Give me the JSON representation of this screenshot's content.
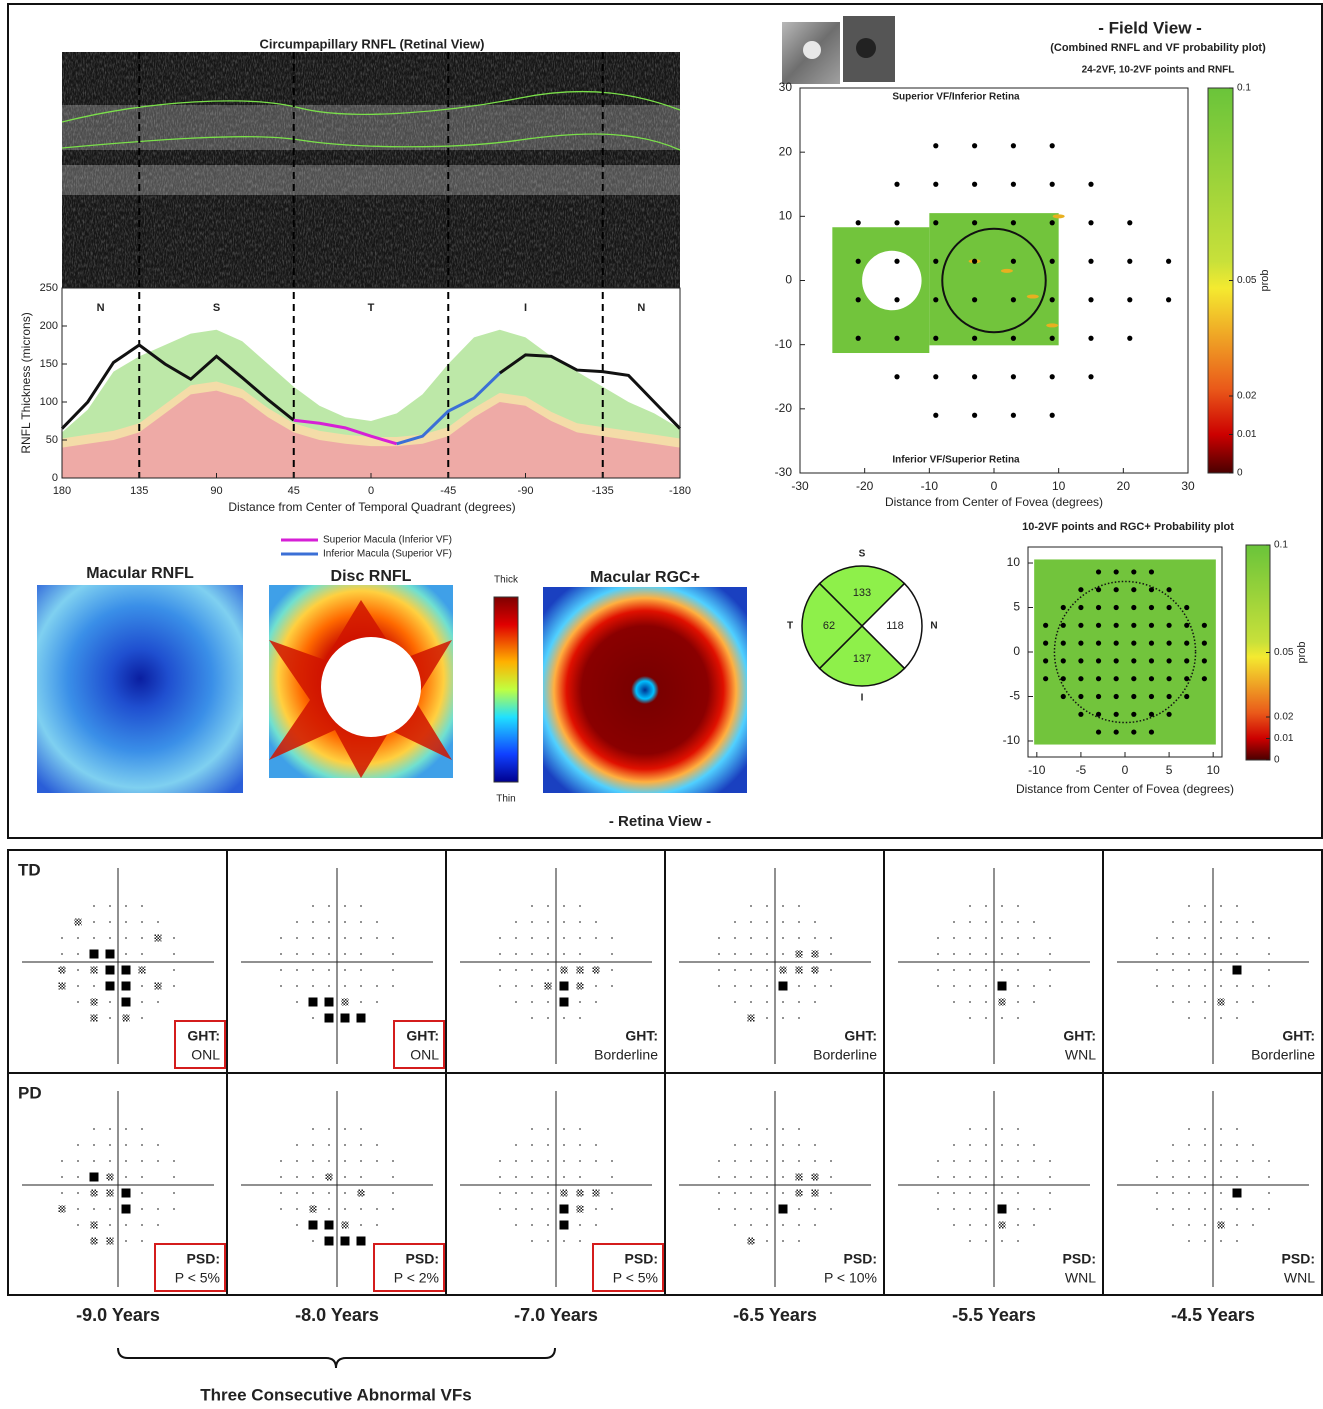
{
  "chart_data": [
    {
      "type": "line",
      "title": "Circumpapillary RNFL (Retinal View)",
      "x_label": "Distance from Center of Temporal Quadrant (degrees)",
      "y_label": "RNFL Thickness (microns)",
      "sector_labels": [
        "N",
        "S",
        "T",
        "I",
        "N"
      ],
      "boundaries": [
        135,
        45,
        -45,
        -135
      ],
      "x": [
        180,
        165,
        150,
        135,
        120,
        105,
        90,
        75,
        60,
        45,
        30,
        15,
        0,
        -15,
        -30,
        -45,
        -60,
        -75,
        -90,
        -105,
        -120,
        -135,
        -150,
        -165,
        -180
      ],
      "series": [
        {
          "color": "#111111",
          "values": [
            65,
            100,
            152,
            175,
            150,
            130,
            160,
            132,
            103,
            76,
            null,
            null,
            null,
            null,
            null,
            null,
            null,
            138,
            162,
            160,
            142,
            140,
            135,
            100,
            65
          ]
        },
        {
          "name": "Superior Macula (Inferior VF)",
          "color": "#d61fd6",
          "values": [
            null,
            null,
            null,
            null,
            null,
            null,
            null,
            null,
            null,
            76,
            72,
            66,
            55,
            45,
            null,
            null,
            null,
            null,
            null,
            null,
            null,
            null,
            null,
            null,
            null
          ]
        },
        {
          "name": "Inferior Macula (Superior VF)",
          "color": "#3b6fd6",
          "values": [
            null,
            null,
            null,
            null,
            null,
            null,
            null,
            null,
            null,
            null,
            null,
            null,
            null,
            45,
            55,
            88,
            105,
            138,
            null,
            null,
            null,
            null,
            null,
            null,
            null
          ]
        }
      ],
      "bands": [
        {
          "color": "#bde8a8",
          "values": [
            60,
            90,
            140,
            160,
            175,
            190,
            195,
            180,
            150,
            120,
            95,
            80,
            75,
            85,
            110,
            150,
            185,
            195,
            185,
            160,
            140,
            120,
            100,
            85,
            65
          ]
        },
        {
          "color": "#f4dca8",
          "values": [
            52,
            57,
            62,
            72,
            97,
            122,
            127,
            117,
            92,
            72,
            62,
            57,
            54,
            54,
            57,
            67,
            92,
            112,
            107,
            87,
            72,
            67,
            62,
            57,
            52
          ]
        },
        {
          "color": "#eeaaa6",
          "values": [
            40,
            45,
            50,
            60,
            85,
            110,
            115,
            105,
            80,
            60,
            50,
            45,
            42,
            42,
            45,
            55,
            80,
            100,
            95,
            75,
            60,
            55,
            50,
            45,
            40
          ]
        }
      ],
      "xlim": [
        180,
        -180
      ],
      "ylim": [
        0,
        250
      ],
      "xticks": [
        180,
        135,
        90,
        45,
        0,
        -45,
        -90,
        -135,
        -180
      ],
      "yticks": [
        0,
        50,
        100,
        150,
        200,
        250
      ]
    },
    {
      "type": "scatter",
      "title": "- Field View -",
      "subtitle": "(Combined RNFL and VF probability plot)",
      "subtitle2": "24-2VF, 10-2VF points and RNFL",
      "annotations": [
        "Superior VF/Inferior Retina",
        "Inferior VF/Superior Retina"
      ],
      "x_label": "Distance from Center of Fovea (degrees)",
      "color": "#000000",
      "x": [
        -9,
        -3,
        3,
        9,
        -15,
        -9,
        -3,
        3,
        9,
        15,
        -21,
        -15,
        -9,
        -3,
        3,
        9,
        15,
        21,
        -21,
        -15,
        -9,
        -3,
        3,
        9,
        15,
        21,
        27,
        -21,
        -15,
        -9,
        -3,
        3,
        9,
        15,
        21,
        27,
        -21,
        -15,
        -9,
        -3,
        3,
        9,
        15,
        21,
        -15,
        -9,
        -3,
        3,
        9,
        15,
        -9,
        -3,
        3,
        9
      ],
      "y": [
        21,
        21,
        21,
        21,
        15,
        15,
        15,
        15,
        15,
        15,
        9,
        9,
        9,
        9,
        9,
        9,
        9,
        9,
        3,
        3,
        3,
        3,
        3,
        3,
        3,
        3,
        3,
        -3,
        -3,
        -3,
        -3,
        -3,
        -3,
        -3,
        -3,
        -3,
        -9,
        -9,
        -9,
        -9,
        -9,
        -9,
        -9,
        -9,
        -15,
        -15,
        -15,
        -15,
        -15,
        -15,
        -21,
        -21,
        -21,
        -21
      ],
      "xlim": [
        -30,
        30
      ],
      "ylim": [
        -30,
        30
      ],
      "xticks": [
        -30,
        -20,
        -10,
        0,
        10,
        20,
        30
      ],
      "yticks": [
        -30,
        -20,
        -10,
        0,
        10,
        20,
        30
      ],
      "colorbar": {
        "lim": [
          0,
          0.1
        ],
        "ticks": [
          0,
          0.01,
          0.02,
          0.05,
          0.1
        ],
        "label": "prob"
      }
    },
    {
      "type": "scatter",
      "title": "10-2VF points and RGC+ Probability plot",
      "x_label": "Distance from Center of Fovea (degrees)",
      "color": "#000000",
      "x": [
        -3,
        -1,
        1,
        3,
        -5,
        -3,
        -1,
        1,
        3,
        5,
        -7,
        -5,
        -3,
        -1,
        1,
        3,
        5,
        7,
        -9,
        -7,
        -5,
        -3,
        -1,
        1,
        3,
        5,
        7,
        9,
        -9,
        -7,
        -5,
        -3,
        -1,
        1,
        3,
        5,
        7,
        9,
        -9,
        -7,
        -5,
        -3,
        -1,
        1,
        3,
        5,
        7,
        9,
        -9,
        -7,
        -5,
        -3,
        -1,
        1,
        3,
        5,
        7,
        9,
        -7,
        -5,
        -3,
        -1,
        1,
        3,
        5,
        7,
        -5,
        -3,
        -1,
        1,
        3,
        5,
        -3,
        -1,
        1,
        3
      ],
      "y": [
        9,
        9,
        9,
        9,
        7,
        7,
        7,
        7,
        7,
        7,
        5,
        5,
        5,
        5,
        5,
        5,
        5,
        5,
        3,
        3,
        3,
        3,
        3,
        3,
        3,
        3,
        3,
        3,
        1,
        1,
        1,
        1,
        1,
        1,
        1,
        1,
        1,
        1,
        -1,
        -1,
        -1,
        -1,
        -1,
        -1,
        -1,
        -1,
        -1,
        -1,
        -3,
        -3,
        -3,
        -3,
        -3,
        -3,
        -3,
        -3,
        -3,
        -3,
        -5,
        -5,
        -5,
        -5,
        -5,
        -5,
        -5,
        -5,
        -7,
        -7,
        -7,
        -7,
        -7,
        -7,
        -9,
        -9,
        -9,
        -9
      ],
      "xlim": [
        -11,
        11
      ],
      "ylim": [
        -11.8,
        11.8
      ],
      "xticks": [
        -10,
        -5,
        0,
        5,
        10
      ],
      "yticks": [
        -10,
        -5,
        0,
        5,
        10
      ],
      "colorbar": {
        "lim": [
          0,
          0.1
        ],
        "ticks": [
          0,
          0.01,
          0.02,
          0.05,
          0.1
        ],
        "label": "prob"
      }
    }
  ],
  "retina_view": {
    "caption": "- Retina View -",
    "maps": [
      "Macular RNFL",
      "Disc RNFL",
      "Macular RGC+"
    ],
    "scale": {
      "top": "Thick",
      "bottom": "Thin"
    },
    "quadrants": [
      {
        "label": "S",
        "value": 133,
        "color": "#8ef04a"
      },
      {
        "label": "N",
        "value": 118,
        "color": "#ffffff"
      },
      {
        "label": "I",
        "value": 137,
        "color": "#8ef04a"
      },
      {
        "label": "T",
        "value": 62,
        "color": "#8ef04a"
      }
    ]
  },
  "visual_fields": {
    "rows": [
      {
        "label": "TD",
        "metric": "GHT:"
      },
      {
        "label": "PD",
        "metric": "PSD:"
      }
    ],
    "columns": [
      {
        "year": "-9.0 Years",
        "td": {
          "result": "ONL",
          "flagged": true,
          "squares": [
            [
              -9,
              3
            ],
            [
              -3,
              3
            ],
            [
              -3,
              -3
            ],
            [
              3,
              -3
            ],
            [
              -3,
              -9
            ],
            [
              3,
              -9
            ],
            [
              3,
              -15
            ]
          ],
          "hatched": [
            [
              -21,
              -3
            ],
            [
              -9,
              -3
            ],
            [
              9,
              -3
            ],
            [
              -21,
              -9
            ],
            [
              15,
              -9
            ],
            [
              -9,
              -15
            ],
            [
              -9,
              -21
            ],
            [
              3,
              -21
            ],
            [
              -15,
              15
            ],
            [
              15,
              9
            ]
          ]
        },
        "pd": {
          "result": "P < 5%",
          "flagged": true,
          "squares": [
            [
              -9,
              3
            ],
            [
              3,
              -3
            ],
            [
              3,
              -9
            ]
          ],
          "hatched": [
            [
              -3,
              3
            ],
            [
              -9,
              -3
            ],
            [
              -3,
              -3
            ],
            [
              -9,
              -15
            ],
            [
              -9,
              -21
            ],
            [
              -3,
              -21
            ],
            [
              -21,
              -9
            ]
          ]
        }
      },
      {
        "year": "-8.0 Years",
        "td": {
          "result": "ONL",
          "flagged": true,
          "squares": [
            [
              -9,
              -15
            ],
            [
              -3,
              -15
            ],
            [
              -3,
              -21
            ],
            [
              3,
              -21
            ],
            [
              9,
              -21
            ]
          ],
          "hatched": [
            [
              3,
              -15
            ]
          ]
        },
        "pd": {
          "result": "P < 2%",
          "flagged": true,
          "squares": [
            [
              -9,
              -15
            ],
            [
              -3,
              -15
            ],
            [
              -3,
              -21
            ],
            [
              3,
              -21
            ],
            [
              9,
              -21
            ]
          ],
          "hatched": [
            [
              3,
              -15
            ],
            [
              -3,
              3
            ],
            [
              9,
              -3
            ],
            [
              -9,
              -9
            ]
          ]
        }
      },
      {
        "year": "-7.0 Years",
        "td": {
          "result": "Borderline",
          "flagged": false,
          "squares": [
            [
              3,
              -9
            ],
            [
              3,
              -15
            ]
          ],
          "hatched": [
            [
              9,
              -3
            ],
            [
              15,
              -3
            ],
            [
              9,
              -9
            ],
            [
              3,
              -3
            ],
            [
              -3,
              -9
            ]
          ]
        },
        "pd": {
          "result": "P < 5%",
          "flagged": true,
          "squares": [
            [
              3,
              -9
            ],
            [
              3,
              -15
            ]
          ],
          "hatched": [
            [
              9,
              -3
            ],
            [
              15,
              -3
            ],
            [
              9,
              -9
            ],
            [
              3,
              -3
            ]
          ]
        }
      },
      {
        "year": "-6.5 Years",
        "td": {
          "result": "Borderline",
          "flagged": false,
          "squares": [
            [
              3,
              -9
            ]
          ],
          "hatched": [
            [
              9,
              3
            ],
            [
              15,
              3
            ],
            [
              9,
              -3
            ],
            [
              15,
              -3
            ],
            [
              3,
              -3
            ],
            [
              -9,
              -21
            ]
          ]
        },
        "pd": {
          "result": "P < 10%",
          "flagged": false,
          "squares": [
            [
              3,
              -9
            ]
          ],
          "hatched": [
            [
              9,
              3
            ],
            [
              15,
              3
            ],
            [
              9,
              -3
            ],
            [
              15,
              -3
            ],
            [
              -9,
              -21
            ]
          ]
        }
      },
      {
        "year": "-5.5 Years",
        "td": {
          "result": "WNL",
          "flagged": false,
          "squares": [
            [
              3,
              -9
            ]
          ],
          "hatched": [
            [
              3,
              -15
            ]
          ]
        },
        "pd": {
          "result": "WNL",
          "flagged": false,
          "squares": [
            [
              3,
              -9
            ]
          ],
          "hatched": [
            [
              3,
              -15
            ]
          ]
        }
      },
      {
        "year": "-4.5 Years",
        "td": {
          "result": "Borderline",
          "flagged": false,
          "squares": [
            [
              9,
              -3
            ]
          ],
          "hatched": [
            [
              3,
              -15
            ]
          ]
        },
        "pd": {
          "result": "WNL",
          "flagged": false,
          "squares": [
            [
              9,
              -3
            ]
          ],
          "hatched": [
            [
              3,
              -15
            ]
          ]
        }
      }
    ],
    "bracket_caption": "Three Consecutive Abnormal VFs"
  }
}
